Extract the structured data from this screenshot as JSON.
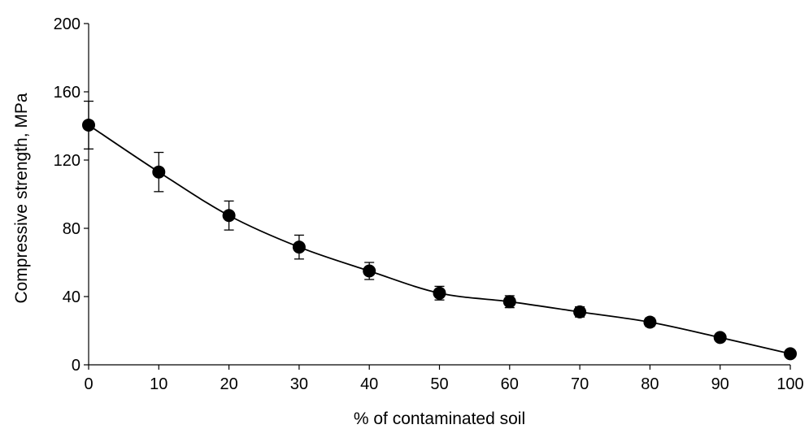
{
  "chart_data": {
    "type": "scatter",
    "title": "",
    "xlabel": "% of contaminated soil",
    "ylabel": "Compressive strength, MPa",
    "xlim": [
      0,
      100
    ],
    "ylim": [
      0,
      200
    ],
    "xticks": [
      0,
      10,
      20,
      30,
      40,
      50,
      60,
      70,
      80,
      90,
      100
    ],
    "yticks": [
      0,
      40,
      80,
      120,
      160,
      200
    ],
    "grid": false,
    "legend": "none",
    "marker_color": "#000000",
    "line_style": "smoothed",
    "series": [
      {
        "x": [
          0,
          10,
          20,
          30,
          40,
          50,
          60,
          70,
          80,
          90,
          100
        ],
        "y": [
          140.5,
          113,
          87.5,
          69,
          55,
          42,
          37,
          31,
          25,
          16,
          6.5
        ],
        "error": [
          14,
          11.5,
          8.5,
          7,
          5,
          4,
          3.5,
          3,
          2.5,
          1.5,
          1
        ]
      }
    ]
  }
}
